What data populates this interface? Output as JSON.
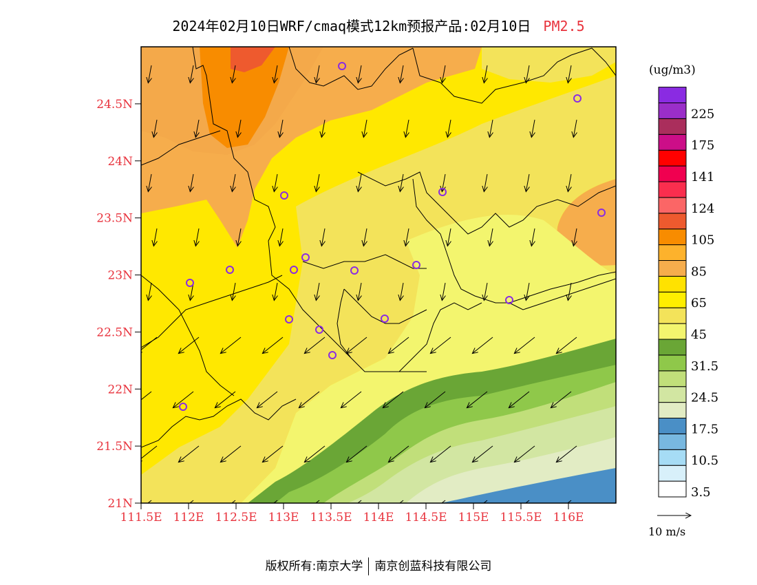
{
  "title": {
    "main": "2024年02月10日WRF/cmaq模式12km预报产品:02月10日",
    "parameter": "PM2.5"
  },
  "map": {
    "lon_range": [
      111.5,
      116.5
    ],
    "lat_range": [
      21.0,
      25.0
    ],
    "lat_ticks": [
      {
        "value": 24.5,
        "label": "24.5N"
      },
      {
        "value": 24.0,
        "label": "24N"
      },
      {
        "value": 23.5,
        "label": "23.5N"
      },
      {
        "value": 23.0,
        "label": "23N"
      },
      {
        "value": 22.5,
        "label": "22.5N"
      },
      {
        "value": 22.0,
        "label": "22N"
      },
      {
        "value": 21.5,
        "label": "21.5N"
      },
      {
        "value": 21.0,
        "label": "21N"
      }
    ],
    "lon_ticks": [
      {
        "value": 111.5,
        "label": "111.5E"
      },
      {
        "value": 112.0,
        "label": "112E"
      },
      {
        "value": 112.5,
        "label": "112.5E"
      },
      {
        "value": 113.0,
        "label": "113E"
      },
      {
        "value": 113.5,
        "label": "113.5E"
      },
      {
        "value": 114.0,
        "label": "114E"
      },
      {
        "value": 114.5,
        "label": "114.5E"
      },
      {
        "value": 115.0,
        "label": "115E"
      },
      {
        "value": 115.5,
        "label": "115.5E"
      },
      {
        "value": 116.0,
        "label": "116E"
      }
    ],
    "tick_color": "#e8323c",
    "wind_direction": "north-northeasterly flow, arrows point south-southwest"
  },
  "colorbar": {
    "unit": "(ug/m3)",
    "levels": [
      {
        "color": "#ffffff",
        "label": "3.5"
      },
      {
        "color": "#d8f0fa",
        "label": ""
      },
      {
        "color": "#a6dcf5",
        "label": "10.5"
      },
      {
        "color": "#78b8e0",
        "label": ""
      },
      {
        "color": "#4a8fc6",
        "label": "17.5"
      },
      {
        "color": "#e2ecc4",
        "label": ""
      },
      {
        "color": "#d2e6a2",
        "label": "24.5"
      },
      {
        "color": "#c1df7a",
        "label": ""
      },
      {
        "color": "#8fc84a",
        "label": "31.5"
      },
      {
        "color": "#6aa636",
        "label": ""
      },
      {
        "color": "#f3f56e",
        "label": "45"
      },
      {
        "color": "#f3e35a",
        "label": ""
      },
      {
        "color": "#ffee00",
        "label": "65"
      },
      {
        "color": "#ffe200",
        "label": ""
      },
      {
        "color": "#f6ad4c",
        "label": "85"
      },
      {
        "color": "#fdb22c",
        "label": ""
      },
      {
        "color": "#f88c00",
        "label": "105"
      },
      {
        "color": "#ee5a2e",
        "label": ""
      },
      {
        "color": "#fb6666",
        "label": "124"
      },
      {
        "color": "#fa2e4e",
        "label": ""
      },
      {
        "color": "#f00050",
        "label": "141"
      },
      {
        "color": "#ff0000",
        "label": ""
      },
      {
        "color": "#cc0e88",
        "label": "175"
      },
      {
        "color": "#aa2e5c",
        "label": ""
      },
      {
        "color": "#9a2ec9",
        "label": "225"
      },
      {
        "color": "#8a2be2",
        "label": ""
      }
    ]
  },
  "wind_legend": {
    "label": "10 m/s"
  },
  "copyright": {
    "left": "版权所有:南京大学",
    "right": "南京创蓝科技有限公司"
  }
}
